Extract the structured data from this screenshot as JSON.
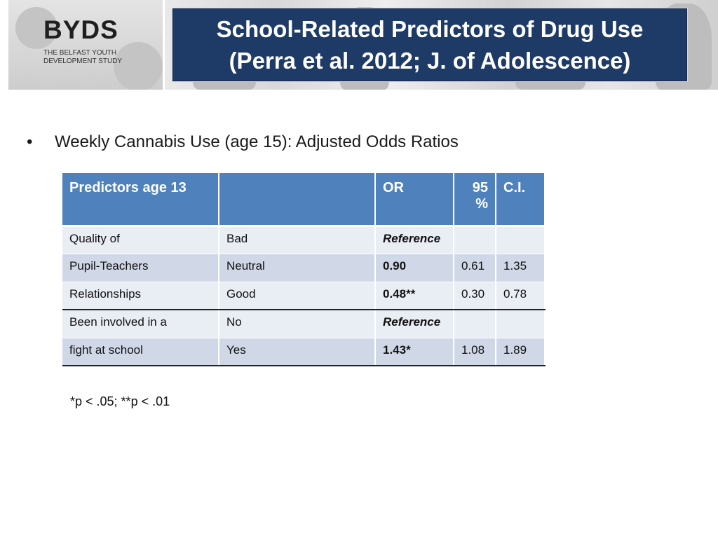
{
  "logo": {
    "title": "BYDS",
    "subtitle": "THE BELFAST YOUTH DEVELOPMENT STUDY"
  },
  "slide": {
    "title_line1": "School-Related Predictors of Drug Use",
    "title_line2": "(Perra et al. 2012; J. of Adolescence)",
    "bullet_symbol": "•",
    "bullet_text": "Weekly Cannabis Use (age 15): Adjusted Odds Ratios",
    "footnote": "*p < .05; **p < .01"
  },
  "table": {
    "headers": [
      "Predictors age 13",
      "",
      "OR",
      "95 %",
      "C.I."
    ],
    "rows": [
      [
        "Quality of",
        "Bad",
        "Reference",
        "",
        ""
      ],
      [
        "Pupil-Teachers",
        "Neutral",
        "0.90",
        "0.61",
        "1.35"
      ],
      [
        "Relationships",
        "Good",
        "0.48**",
        "0.30",
        "0.78"
      ],
      [
        "Been involved in a",
        "No",
        "Reference",
        "",
        ""
      ],
      [
        "fight at school",
        "Yes",
        "1.43*",
        "1.08",
        "1.89"
      ]
    ]
  },
  "colors": {
    "title_bg": "#1e3a66",
    "header_bg": "#4f81bd",
    "row_light": "#e9edf4",
    "row_dark": "#d0d8e8"
  }
}
